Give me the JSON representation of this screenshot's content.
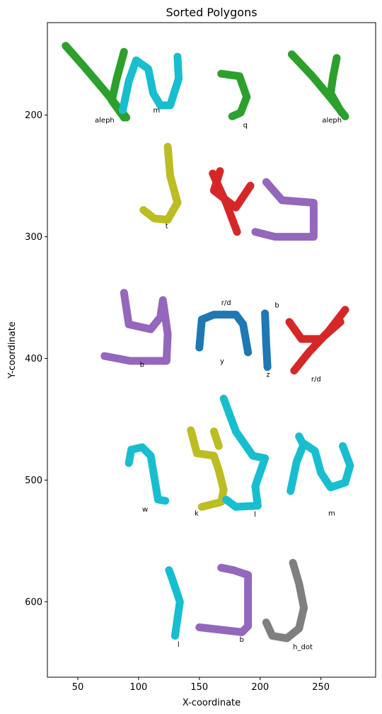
{
  "chart_data": {
    "type": "scatter",
    "title": "Sorted Polygons",
    "xlabel": "X-coordinate",
    "ylabel": "Y-coordinate",
    "xlim": [
      25,
      295
    ],
    "ylim": [
      124,
      662
    ],
    "y_inverted": true,
    "grid": false,
    "xticks": [
      50,
      100,
      150,
      200,
      250
    ],
    "yticks": [
      200,
      300,
      400,
      500,
      600
    ],
    "colors": {
      "green": "#2ca02c",
      "cyan": "#17becf",
      "olive": "#bcbd22",
      "red": "#d62728",
      "purple": "#9467bd",
      "blue": "#1f77b4",
      "gray": "#7f7f7f"
    },
    "polygons": [
      {
        "label": "aleph",
        "color": "green",
        "label_xy": [
          64,
          206
        ],
        "strokes": [
          [
            [
              40,
              143
            ],
            [
              55,
              160
            ],
            [
              72,
              180
            ],
            [
              90,
              202
            ]
          ],
          [
            [
              88,
              148
            ],
            [
              82,
              170
            ],
            [
              78,
              188
            ],
            [
              88,
              202
            ]
          ]
        ]
      },
      {
        "label": "m",
        "color": "cyan",
        "label_xy": [
          112,
          198
        ],
        "strokes": [
          [
            [
              87,
              196
            ],
            [
              92,
              172
            ],
            [
              98,
              155
            ],
            [
              108,
              162
            ],
            [
              112,
              182
            ],
            [
              118,
              192
            ],
            [
              126,
              192
            ],
            [
              133,
              170
            ],
            [
              132,
              152
            ]
          ]
        ]
      },
      {
        "label": "q",
        "color": "green",
        "label_xy": [
          186,
          210
        ],
        "strokes": [
          [
            [
              168,
              166
            ],
            [
              183,
              168
            ],
            [
              189,
              185
            ],
            [
              184,
              198
            ],
            [
              177,
              201
            ]
          ]
        ]
      },
      {
        "label": "aleph",
        "color": "green",
        "label_xy": [
          251,
          206
        ],
        "strokes": [
          [
            [
              226,
              150
            ],
            [
              243,
              168
            ],
            [
              258,
              186
            ],
            [
              270,
              201
            ]
          ],
          [
            [
              263,
              153
            ],
            [
              260,
              168
            ],
            [
              258,
              182
            ],
            [
              267,
              198
            ]
          ]
        ]
      },
      {
        "label": "t",
        "color": "olive",
        "label_xy": [
          122,
          293
        ],
        "strokes": [
          [
            [
              124,
              226
            ],
            [
              126,
              250
            ],
            [
              132,
              272
            ],
            [
              124,
              286
            ],
            [
              113,
              285
            ],
            [
              104,
              278
            ]
          ]
        ]
      },
      {
        "label": "r/d",
        "color": "red",
        "label_xy": [
          168,
          356
        ],
        "strokes": [
          [
            [
              161,
              248
            ],
            [
              172,
              272
            ],
            [
              181,
              296
            ]
          ],
          [
            [
              167,
              246
            ],
            [
              162,
              262
            ],
            [
              180,
              276
            ],
            [
              192,
              258
            ]
          ]
        ]
      },
      {
        "label": "b",
        "color": "purple",
        "label_xy": [
          212,
          358
        ],
        "strokes": [
          [
            [
              205,
              255
            ],
            [
              218,
              270
            ],
            [
              244,
              272
            ],
            [
              244,
              300
            ],
            [
              212,
              300
            ],
            [
              196,
              296
            ]
          ]
        ]
      },
      {
        "label": "b",
        "color": "purple",
        "label_xy": [
          101,
          407
        ],
        "strokes": [
          [
            [
              88,
              346
            ],
            [
              92,
              372
            ],
            [
              110,
              376
            ],
            [
              118,
              366
            ],
            [
              120,
              352
            ],
            [
              124,
              380
            ],
            [
              123,
              402
            ],
            [
              93,
              402
            ],
            [
              72,
              398
            ]
          ]
        ]
      },
      {
        "label": "y",
        "color": "blue",
        "label_xy": [
          167,
          404
        ],
        "strokes": [
          [
            [
              150,
              391
            ],
            [
              152,
              368
            ],
            [
              162,
              364
            ],
            [
              180,
              364
            ],
            [
              186,
              372
            ],
            [
              190,
              395
            ]
          ]
        ]
      },
      {
        "label": "z",
        "color": "blue",
        "label_xy": [
          205,
          415
        ],
        "strokes": [
          [
            [
              204,
              363
            ],
            [
              205,
              388
            ],
            [
              206,
              407
            ]
          ]
        ]
      },
      {
        "label": "r/d",
        "color": "red",
        "label_xy": [
          242,
          419
        ],
        "strokes": [
          [
            [
              228,
              410
            ],
            [
              240,
              395
            ],
            [
              256,
              378
            ],
            [
              270,
              360
            ]
          ],
          [
            [
              224,
              370
            ],
            [
              234,
              384
            ],
            [
              250,
              384
            ],
            [
              266,
              370
            ]
          ]
        ]
      },
      {
        "label": "w",
        "color": "cyan",
        "label_xy": [
          103,
          526
        ],
        "strokes": [
          [
            [
              92,
              486
            ],
            [
              94,
              475
            ],
            [
              103,
              473
            ],
            [
              110,
              480
            ],
            [
              113,
              498
            ],
            [
              116,
              516
            ],
            [
              122,
              517
            ]
          ]
        ]
      },
      {
        "label": "k",
        "color": "olive",
        "label_xy": [
          146,
          529
        ],
        "strokes": [
          [
            [
              143,
              459
            ],
            [
              148,
              478
            ],
            [
              162,
              480
            ],
            [
              166,
              492
            ],
            [
              170,
              508
            ],
            [
              168,
              518
            ],
            [
              152,
              522
            ]
          ],
          [
            [
              162,
              460
            ],
            [
              166,
              472
            ]
          ]
        ]
      },
      {
        "label": "l",
        "color": "cyan",
        "label_xy": [
          195,
          530
        ],
        "strokes": [
          [
            [
              170,
              433
            ],
            [
              180,
              460
            ],
            [
              194,
              480
            ],
            [
              204,
              482
            ],
            [
              196,
              505
            ],
            [
              198,
              521
            ],
            [
              180,
              522
            ],
            [
              172,
              516
            ]
          ]
        ]
      },
      {
        "label": "m",
        "color": "cyan",
        "label_xy": [
          256,
          529
        ],
        "strokes": [
          [
            [
              225,
              509
            ],
            [
              230,
              485
            ],
            [
              236,
              470
            ],
            [
              245,
              476
            ],
            [
              250,
              494
            ],
            [
              258,
              506
            ],
            [
              270,
              502
            ],
            [
              274,
              488
            ],
            [
              268,
              472
            ]
          ],
          [
            [
              232,
              464
            ],
            [
              236,
              472
            ]
          ]
        ]
      },
      {
        "label": "l",
        "color": "cyan",
        "label_xy": [
          132,
          637
        ],
        "strokes": [
          [
            [
              125,
              574
            ],
            [
              128,
              582
            ],
            [
              134,
              600
            ],
            [
              130,
              628
            ]
          ]
        ]
      },
      {
        "label": "b",
        "color": "purple",
        "label_xy": [
          183,
          633
        ],
        "strokes": [
          [
            [
              150,
              621
            ],
            [
              185,
              625
            ],
            [
              190,
              620
            ],
            [
              190,
              578
            ],
            [
              178,
              574
            ],
            [
              168,
              572
            ]
          ]
        ]
      },
      {
        "label": "h_dot",
        "color": "gray",
        "label_xy": [
          227,
          639
        ],
        "strokes": [
          [
            [
              205,
              617
            ],
            [
              210,
              628
            ],
            [
              222,
              630
            ],
            [
              232,
              622
            ],
            [
              236,
              605
            ],
            [
              232,
              585
            ],
            [
              227,
              568
            ]
          ]
        ]
      }
    ]
  }
}
